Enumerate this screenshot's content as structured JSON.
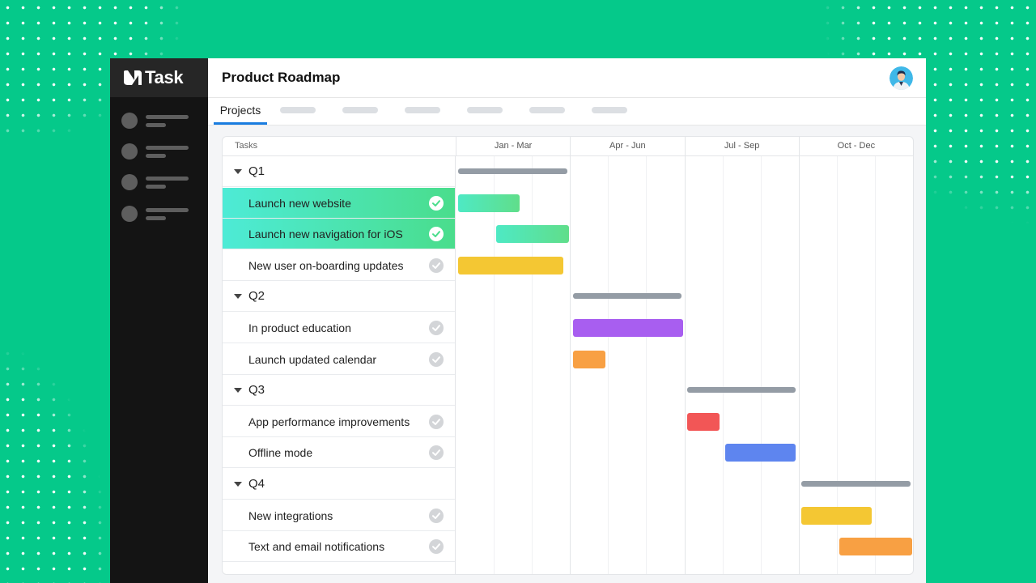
{
  "app": {
    "name": "Task",
    "logo": "ntask-logo"
  },
  "header": {
    "title": "Product Roadmap",
    "avatar": "user-avatar"
  },
  "tabs": {
    "active": "Projects",
    "placeholder_count": 6
  },
  "sidebar": {
    "items": [
      "nav-item-1",
      "nav-item-2",
      "nav-item-3",
      "nav-item-4"
    ]
  },
  "gantt": {
    "tasks_header": "Tasks",
    "periods": [
      "Jan - Mar",
      "Apr - Jun",
      "Jul - Sep",
      "Oct - Dec"
    ],
    "groups": [
      {
        "name": "Q1",
        "tasks": [
          {
            "name": "Launch new website",
            "done": true,
            "highlighted": true,
            "color": "#4EE9C4",
            "color2": "#60DE8A",
            "start": 0.03,
            "end": 1.63
          },
          {
            "name": "Launch new navigation for iOS",
            "done": true,
            "highlighted": true,
            "color": "#4EE9C4",
            "color2": "#60DE8A",
            "start": 1.03,
            "end": 2.93
          },
          {
            "name": "New user on-boarding updates",
            "done": false,
            "highlighted": false,
            "color": "#F4C733",
            "start": 0.03,
            "end": 2.78
          }
        ]
      },
      {
        "name": "Q2",
        "tasks": [
          {
            "name": "In product education",
            "done": false,
            "highlighted": false,
            "color": "#A85EF0",
            "start": 3.03,
            "end": 5.93
          },
          {
            "name": "Launch updated calendar",
            "done": false,
            "highlighted": false,
            "color": "#F8A043",
            "start": 3.03,
            "end": 3.88
          }
        ]
      },
      {
        "name": "Q3",
        "tasks": [
          {
            "name": "App performance improvements",
            "done": false,
            "highlighted": false,
            "color": "#F25656",
            "start": 6.03,
            "end": 6.88
          },
          {
            "name": "Offline mode",
            "done": false,
            "highlighted": false,
            "color": "#5E85EF",
            "start": 7.03,
            "end": 8.88
          }
        ]
      },
      {
        "name": "Q4",
        "tasks": [
          {
            "name": "New integrations",
            "done": false,
            "highlighted": false,
            "color": "#F4C733",
            "start": 9.03,
            "end": 10.88
          },
          {
            "name": "Text  and email notifications",
            "done": false,
            "highlighted": false,
            "color": "#F8A043",
            "start": 10.03,
            "end": 11.93
          }
        ]
      }
    ],
    "summary_color": "#949CA5"
  }
}
